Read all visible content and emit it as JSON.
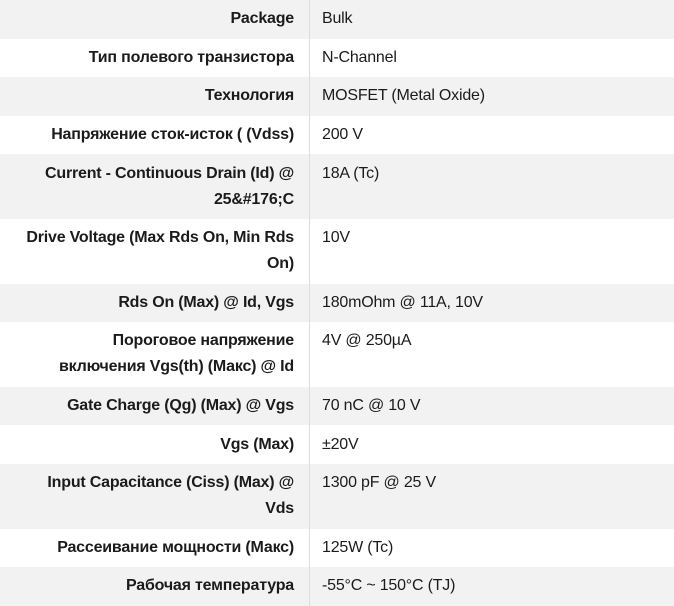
{
  "colors": {
    "row_alt_bg": "#f2f2f2",
    "row_bg": "#ffffff",
    "divider": "#dddddd",
    "text": "#1b1b1b"
  },
  "table": {
    "rows": [
      {
        "label": "Package",
        "value": "Bulk"
      },
      {
        "label": "Тип полевого транзистора",
        "value": "N-Channel"
      },
      {
        "label": "Технология",
        "value": "MOSFET (Metal Oxide)"
      },
      {
        "label": "Напряжение сток-исток ( (Vdss)",
        "value": "200 V"
      },
      {
        "label": "Current - Continuous Drain (Id) @\n25&#176;C",
        "value": "18A (Tc)"
      },
      {
        "label": "Drive Voltage (Max Rds On, Min Rds\nOn)",
        "value": "10V"
      },
      {
        "label": "Rds On (Max) @ Id, Vgs",
        "value": "180mOhm @ 11A, 10V"
      },
      {
        "label": "Пороговое напряжение\nвключения Vgs(th) (Макс) @ Id",
        "value": "4V @ 250µA"
      },
      {
        "label": "Gate Charge (Qg) (Max) @ Vgs",
        "value": "70 nC @ 10 V"
      },
      {
        "label": "Vgs (Max)",
        "value": "±20V"
      },
      {
        "label": "Input Capacitance (Ciss) (Max) @\nVds",
        "value": "1300 pF @ 25 V"
      },
      {
        "label": "Рассеивание мощности (Макс)",
        "value": "125W (Tc)"
      },
      {
        "label": "Рабочая температура",
        "value": "-55°C ~ 150°C (TJ)"
      }
    ]
  }
}
